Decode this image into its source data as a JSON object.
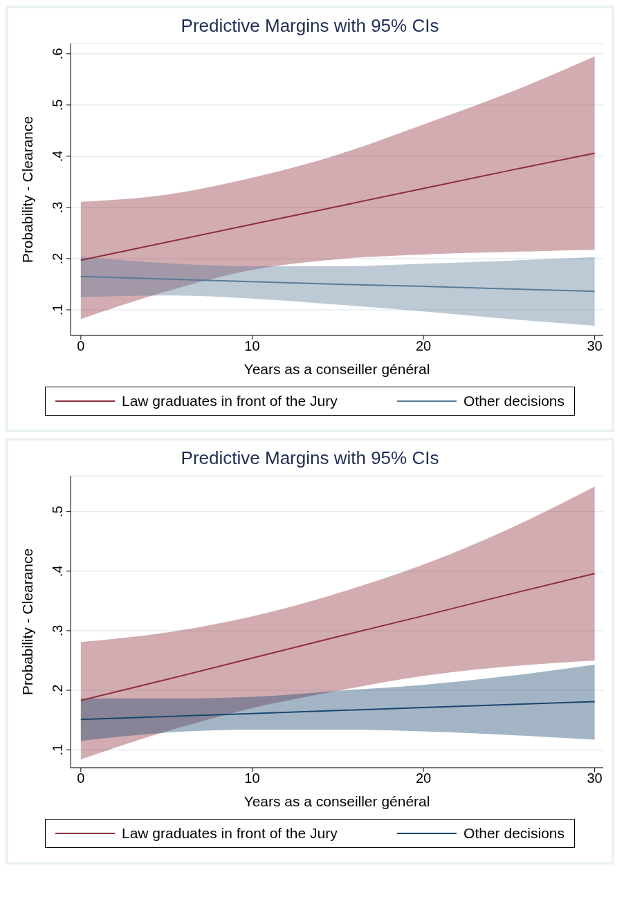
{
  "chart_data": [
    {
      "type": "line",
      "title": "Predictive Margins with 95% CIs",
      "xlabel": "Years as a conseiller général",
      "ylabel": "Probability - Clearance",
      "x": [
        0,
        5,
        10,
        15,
        20,
        25,
        30
      ],
      "xlim": [
        -0.6,
        30.5
      ],
      "xticks": [
        0,
        10,
        20,
        30
      ],
      "ylim": [
        0.05,
        0.62
      ],
      "yticks": [
        {
          "value": 0.1,
          "label": ".1"
        },
        {
          "value": 0.2,
          "label": ".2"
        },
        {
          "value": 0.3,
          "label": ".3"
        },
        {
          "value": 0.4,
          "label": ".4"
        },
        {
          "value": 0.5,
          "label": ".5"
        },
        {
          "value": 0.6,
          "label": ".6"
        }
      ],
      "grid": "y",
      "legend": "bottom",
      "marker": "none",
      "line_style": "solid",
      "series": [
        {
          "name": "Law graduates in front of the Jury",
          "color": "#8e2f3b",
          "values": [
            0.197,
            0.232,
            0.267,
            0.302,
            0.337,
            0.372,
            0.406
          ],
          "lower": [
            0.082,
            0.136,
            0.178,
            0.199,
            0.208,
            0.213,
            0.217
          ],
          "upper": [
            0.311,
            0.325,
            0.358,
            0.403,
            0.462,
            0.524,
            0.595
          ]
        },
        {
          "name": "Other decisions",
          "color": "#5a7a99",
          "values": [
            0.165,
            0.16,
            0.155,
            0.15,
            0.146,
            0.141,
            0.136
          ],
          "lower": [
            0.125,
            0.128,
            0.122,
            0.11,
            0.097,
            0.082,
            0.069
          ],
          "upper": [
            0.204,
            0.191,
            0.185,
            0.185,
            0.19,
            0.196,
            0.203
          ]
        }
      ]
    },
    {
      "type": "line",
      "title": "Predictive Margins with 95% CIs",
      "xlabel": "Years as a conseiller général",
      "ylabel": "Probability - Clearance",
      "x": [
        0,
        5,
        10,
        15,
        20,
        25,
        30
      ],
      "xlim": [
        -0.6,
        30.5
      ],
      "xticks": [
        0,
        10,
        20,
        30
      ],
      "ylim": [
        0.07,
        0.56
      ],
      "yticks": [
        {
          "value": 0.1,
          "label": ".1"
        },
        {
          "value": 0.2,
          "label": ".2"
        },
        {
          "value": 0.3,
          "label": ".3"
        },
        {
          "value": 0.4,
          "label": ".4"
        },
        {
          "value": 0.5,
          "label": ".5"
        }
      ],
      "grid": "y",
      "legend": "bottom",
      "marker": "none",
      "line_style": "solid",
      "series": [
        {
          "name": "Law graduates in front of the Jury",
          "color": "#8e2f3b",
          "values": [
            0.183,
            0.218,
            0.254,
            0.29,
            0.325,
            0.361,
            0.396
          ],
          "lower": [
            0.084,
            0.131,
            0.17,
            0.199,
            0.224,
            0.24,
            0.25
          ],
          "upper": [
            0.281,
            0.297,
            0.324,
            0.363,
            0.411,
            0.471,
            0.542
          ]
        },
        {
          "name": "Other decisions",
          "color": "#1a476f",
          "values": [
            0.151,
            0.156,
            0.161,
            0.166,
            0.171,
            0.176,
            0.181
          ],
          "lower": [
            0.115,
            0.129,
            0.134,
            0.134,
            0.131,
            0.125,
            0.117
          ],
          "upper": [
            0.186,
            0.186,
            0.189,
            0.199,
            0.209,
            0.224,
            0.243
          ]
        }
      ]
    }
  ]
}
